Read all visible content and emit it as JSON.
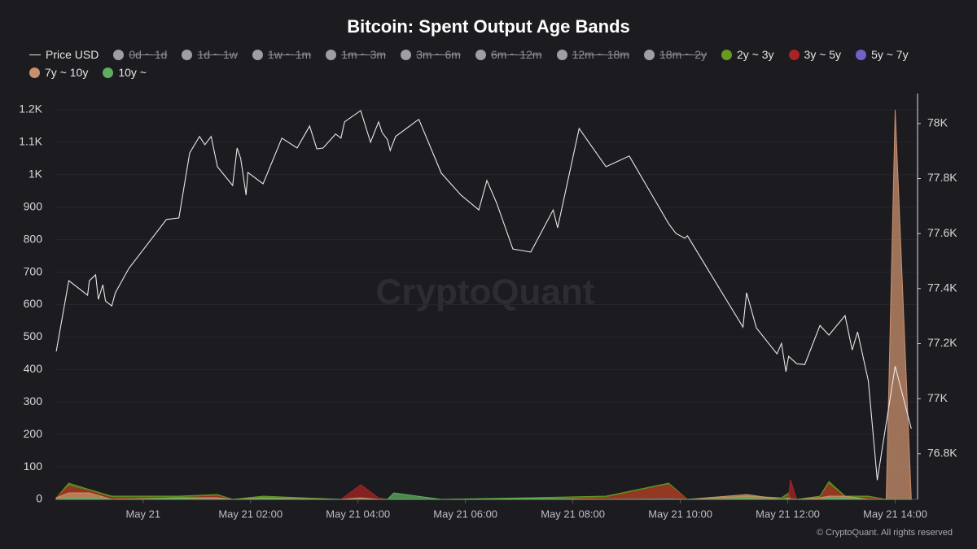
{
  "chart_data": {
    "type": "line-area",
    "title": "Bitcoin: Spent Output Age Bands",
    "watermark": "CryptoQuant",
    "copyright": "© CryptoQuant. All rights reserved",
    "xlim": [
      "May 20 22:22",
      "May 21 14:25"
    ],
    "xticks": [
      {
        "value": "May 21 00:00",
        "label": "May 21"
      },
      "May 21 02:00",
      "May 21 04:00",
      "May 21 06:00",
      "May 21 08:00",
      "May 21 10:00",
      "May 21 12:00",
      "May 21 14:00"
    ],
    "ylim": [
      0,
      1250
    ],
    "yticks": [
      0,
      100,
      200,
      300,
      400,
      500,
      600,
      700,
      800,
      900,
      {
        "value": 1000,
        "label": "1K"
      },
      {
        "value": 1100,
        "label": "1.1K"
      },
      {
        "value": 1200,
        "label": "1.2K"
      }
    ],
    "y2lim": [
      76634,
      78109
    ],
    "y2ticks": [
      {
        "value": 76800,
        "label": "76.8K"
      },
      {
        "value": 77000,
        "label": "77K"
      },
      {
        "value": 77200,
        "label": "77.2K"
      },
      {
        "value": 77400,
        "label": "77.4K"
      },
      {
        "value": 77600,
        "label": "77.6K"
      },
      {
        "value": 77800,
        "label": "77.8K"
      },
      {
        "value": 78000,
        "label": "78K"
      }
    ],
    "grid": true,
    "x": [
      "May 20 22:23",
      "May 20 22:37",
      "May 20 23:00",
      "May 20 23:25",
      "May 21 00:40",
      "May 21 01:23",
      "May 21 01:40",
      "May 21 02:14",
      "May 21 03:41",
      "May 21 04:03",
      "May 21 04:23",
      "May 21 04:33",
      "May 21 04:40",
      "May 21 05:33",
      "May 21 07:13",
      "May 21 08:37",
      "May 21 09:47",
      "May 21 10:08",
      "May 21 11:14",
      "May 21 11:53",
      "May 21 12:01",
      "May 21 12:03",
      "May 21 12:10",
      "May 21 12:36",
      "May 21 12:46",
      "May 21 13:04",
      "May 21 13:30",
      "May 21 13:50",
      "May 21 14:00",
      "May 21 14:18"
    ],
    "series": [
      {
        "name": "Price USD",
        "color": "#e8e8e8",
        "axis": "y2",
        "line": true,
        "x": [
          "May 20 22:23",
          "May 20 22:37",
          "May 20 22:58",
          "May 20 23:00",
          "May 20 23:07",
          "May 20 23:10",
          "May 20 23:15",
          "May 20 23:18",
          "May 20 23:25",
          "May 20 23:29",
          "May 20 23:44",
          "May 21 00:26",
          "May 21 00:40",
          "May 21 00:52",
          "May 21 01:03",
          "May 21 01:09",
          "May 21 01:16",
          "May 21 01:23",
          "May 21 01:40",
          "May 21 01:45",
          "May 21 01:49",
          "May 21 01:55",
          "May 21 01:57",
          "May 21 02:14",
          "May 21 02:35",
          "May 21 02:52",
          "May 21 03:06",
          "May 21 03:14",
          "May 21 03:21",
          "May 21 03:35",
          "May 21 03:41",
          "May 21 03:45",
          "May 21 04:03",
          "May 21 04:14",
          "May 21 04:23",
          "May 21 04:27",
          "May 21 04:33",
          "May 21 04:36",
          "May 21 04:42",
          "May 21 05:04",
          "May 21 05:08",
          "May 21 05:33",
          "May 21 05:55",
          "May 21 06:15",
          "May 21 06:24",
          "May 21 06:31",
          "May 21 06:35",
          "May 21 06:53",
          "May 21 07:13",
          "May 21 07:38",
          "May 21 07:43",
          "May 21 08:07",
          "May 21 08:37",
          "May 21 09:03",
          "May 21 09:47",
          "May 21 09:55",
          "May 21 10:05",
          "May 21 10:08",
          "May 21 11:10",
          "May 21 11:14",
          "May 21 11:25",
          "May 21 11:48",
          "May 21 11:53",
          "May 21 11:58",
          "May 21 12:01",
          "May 21 12:10",
          "May 21 12:19",
          "May 21 12:36",
          "May 21 12:46",
          "May 21 13:04",
          "May 21 13:12",
          "May 21 13:18",
          "May 21 13:30",
          "May 21 13:40",
          "May 21 14:00",
          "May 21 14:18"
        ],
        "values": [
          77172,
          77429,
          77376,
          77429,
          77450,
          77361,
          77414,
          77355,
          77337,
          77385,
          77473,
          77651,
          77657,
          77893,
          77953,
          77923,
          77953,
          77843,
          77775,
          77911,
          77873,
          77740,
          77822,
          77781,
          77947,
          77911,
          77991,
          77908,
          77911,
          77962,
          77947,
          78006,
          78047,
          77932,
          78006,
          77967,
          77941,
          77902,
          77953,
          78006,
          78015,
          77820,
          77740,
          77686,
          77793,
          77740,
          77710,
          77544,
          77533,
          77686,
          77621,
          77982,
          77843,
          77882,
          77636,
          77601,
          77583,
          77592,
          77260,
          77385,
          77257,
          77163,
          77201,
          77098,
          77154,
          77127,
          77124,
          77266,
          77231,
          77302,
          77177,
          77243,
          77065,
          76704,
          77118,
          76891
        ]
      },
      {
        "name": "0d ~ 1d",
        "color": "#9e9ea6",
        "hidden": true
      },
      {
        "name": "1d ~ 1w",
        "color": "#9e9ea6",
        "hidden": true
      },
      {
        "name": "1w ~ 1m",
        "color": "#9e9ea6",
        "hidden": true
      },
      {
        "name": "1m ~ 3m",
        "color": "#9e9ea6",
        "hidden": true
      },
      {
        "name": "3m ~ 6m",
        "color": "#9e9ea6",
        "hidden": true
      },
      {
        "name": "6m ~ 12m",
        "color": "#9e9ea6",
        "hidden": true
      },
      {
        "name": "12m ~ 18m",
        "color": "#9e9ea6",
        "hidden": true
      },
      {
        "name": "18m ~ 2y",
        "color": "#9e9ea6",
        "hidden": true
      },
      {
        "name": "2y ~ 3y",
        "color": "#6b9a1e",
        "values": [
          5,
          50,
          30,
          10,
          10,
          15,
          0,
          10,
          0,
          0,
          0,
          0,
          0,
          0,
          5,
          10,
          50,
          0,
          10,
          5,
          20,
          5,
          0,
          10,
          55,
          10,
          10,
          0,
          0,
          0
        ]
      },
      {
        "name": "3y ~ 5y",
        "color": "#a82424",
        "values": [
          5,
          40,
          25,
          5,
          5,
          10,
          0,
          5,
          0,
          45,
          5,
          0,
          0,
          0,
          0,
          5,
          45,
          0,
          5,
          0,
          10,
          60,
          0,
          5,
          45,
          5,
          5,
          0,
          0,
          0
        ]
      },
      {
        "name": "5y ~ 7y",
        "color": "#6f63c8",
        "values": [
          0,
          2,
          2,
          0,
          0,
          2,
          0,
          0,
          0,
          0,
          0,
          0,
          0,
          0,
          0,
          0,
          2,
          0,
          0,
          0,
          2,
          0,
          0,
          0,
          2,
          0,
          0,
          0,
          0,
          0
        ]
      },
      {
        "name": "7y ~ 10y",
        "color": "#c9906c",
        "values": [
          5,
          20,
          20,
          0,
          5,
          5,
          0,
          5,
          0,
          5,
          0,
          0,
          0,
          0,
          0,
          0,
          0,
          0,
          15,
          0,
          5,
          0,
          0,
          5,
          10,
          10,
          0,
          0,
          1200,
          0
        ]
      },
      {
        "name": "10y ~",
        "color": "#5fae5f",
        "values": [
          0,
          5,
          5,
          0,
          3,
          0,
          0,
          3,
          0,
          0,
          0,
          0,
          20,
          0,
          3,
          0,
          0,
          0,
          3,
          0,
          5,
          0,
          0,
          0,
          5,
          3,
          0,
          0,
          0,
          0
        ]
      }
    ]
  }
}
